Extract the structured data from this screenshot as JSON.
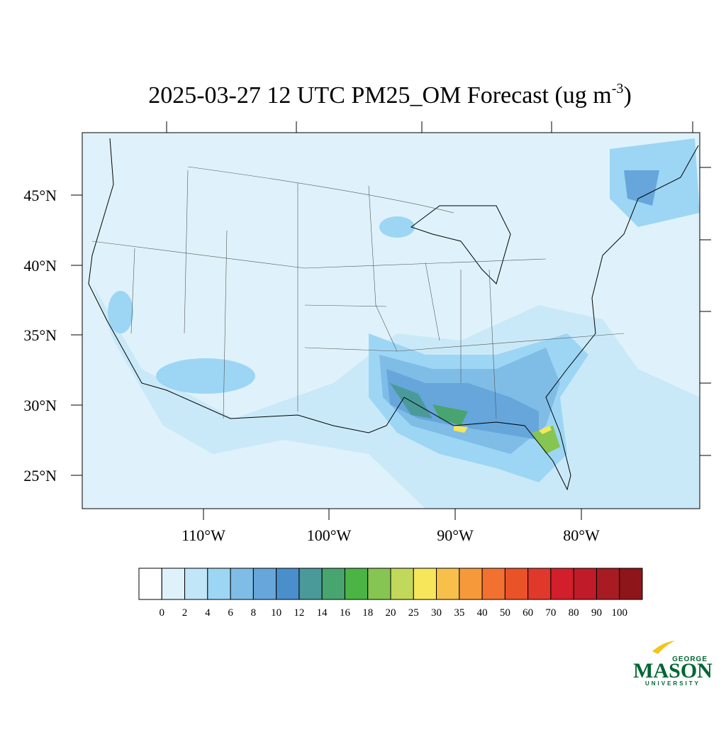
{
  "title": {
    "main": "2025-03-27 12 UTC PM25_OM Forecast (ug m",
    "superscript": "-3",
    "end": ")"
  },
  "map": {
    "lat_labels": [
      "45°N",
      "40°N",
      "35°N",
      "30°N",
      "25°N"
    ],
    "lon_labels": [
      "110°W",
      "100°W",
      "90°W",
      "80°W"
    ]
  },
  "colorbar": {
    "levels": [
      0,
      2,
      4,
      6,
      8,
      10,
      12,
      14,
      16,
      18,
      20,
      25,
      30,
      35,
      40,
      50,
      60,
      70,
      80,
      90,
      100
    ],
    "colors": [
      "#ffffff",
      "#dff2fb",
      "#c0e6f7",
      "#9dd6f4",
      "#7fbde7",
      "#66a6db",
      "#4a8fcb",
      "#4a9a9a",
      "#48a56f",
      "#4cb444",
      "#86c551",
      "#c2d85a",
      "#f7e65a",
      "#f8c04b",
      "#f6993b",
      "#f37130",
      "#ea5228",
      "#e0382a",
      "#d21f2b",
      "#bf1b29",
      "#a81b23",
      "#8e1519"
    ]
  },
  "logo": {
    "top": "GEORGE",
    "main": "MASON",
    "bottom": "UNIVERSITY"
  }
}
